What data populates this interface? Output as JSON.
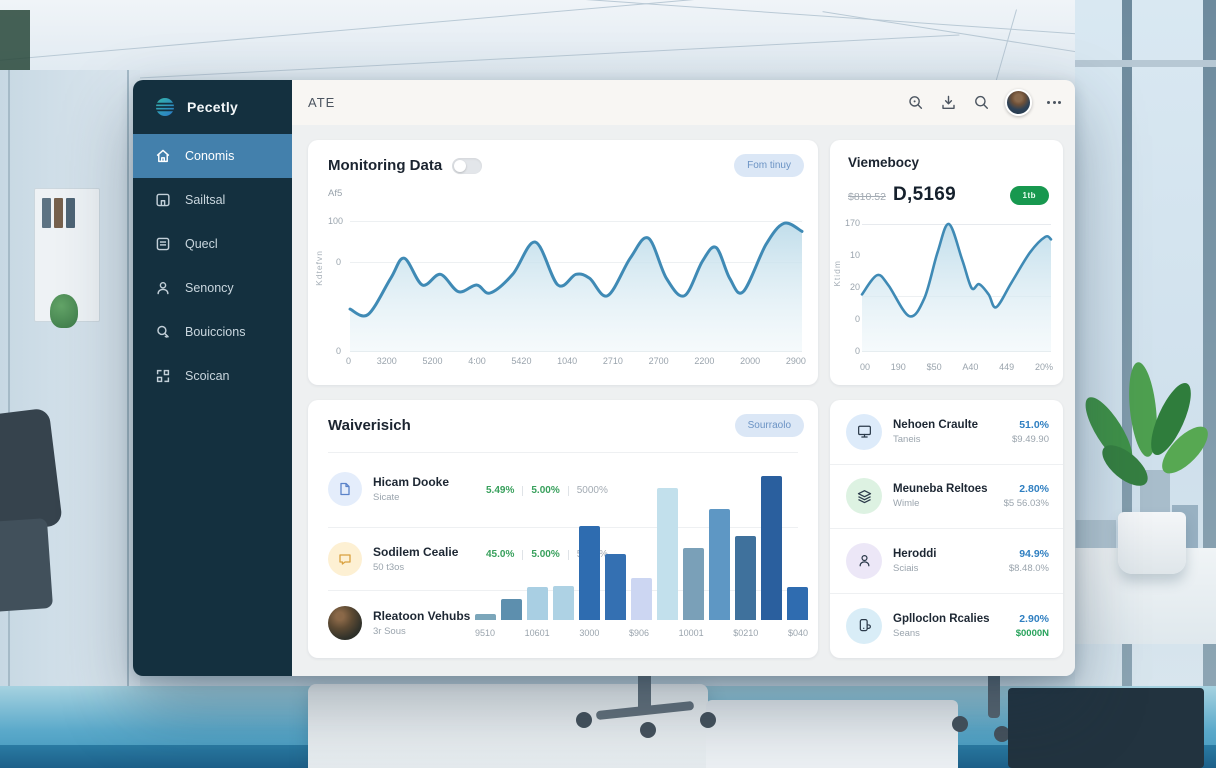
{
  "topbar": {
    "title": "ATE",
    "icons": [
      "zoom-icon",
      "download-icon",
      "search-icon",
      "avatar",
      "more-icon"
    ]
  },
  "sidebar": {
    "logo_label": "Pecetly",
    "items": [
      {
        "label": "Conomis",
        "icon": "home",
        "active": true
      },
      {
        "label": "Sailtsal",
        "icon": "building",
        "active": false
      },
      {
        "label": "Quecl",
        "icon": "document",
        "active": false
      },
      {
        "label": "Senoncy",
        "icon": "user",
        "active": false
      },
      {
        "label": "Bouiccions",
        "icon": "search",
        "active": false
      },
      {
        "label": "Scoican",
        "icon": "grid",
        "active": false
      }
    ]
  },
  "monitoring": {
    "title": "Monitoring Data",
    "toggle_on": false,
    "subtitle": "Af5",
    "action_label": "Fom tinuy"
  },
  "viemebocy": {
    "title": "Viemebocy",
    "amount_prefix": "$810.52",
    "amount": "D,5169",
    "badge": "1tb"
  },
  "waiverisich": {
    "title": "Waiverisich",
    "action_label": "Sourraolo",
    "rows": [
      {
        "title": "Hicam Dooke",
        "subtitle": "Sicate",
        "v1": "5.49%",
        "v2": "5.00%",
        "v3": "5000%"
      },
      {
        "title": "Sodilem Cealie",
        "subtitle": "50 t3os",
        "v1": "45.0%",
        "v2": "5.00%",
        "v3": "5000%"
      },
      {
        "title": "Rleatoon Vehubs",
        "subtitle": "3r Sous"
      }
    ]
  },
  "stats": {
    "rows": [
      {
        "title": "Nehoen Craulte",
        "subtitle": "Taneis",
        "value": "51.0%",
        "sub_value": "$9.49.90",
        "sub_green": false
      },
      {
        "title": "Meuneba Reltoes",
        "subtitle": "Wimle",
        "value": "2.80%",
        "sub_value": "$5 56.03%",
        "sub_green": false
      },
      {
        "title": "Heroddi",
        "subtitle": "Sciais",
        "value": "94.9%",
        "sub_value": "$8.48.0%",
        "sub_green": false
      },
      {
        "title": "Gplloclon Rcalies",
        "subtitle": "Seans",
        "value": "2.90%",
        "sub_value": "$0000N",
        "sub_green": true
      }
    ]
  },
  "colors": {
    "sidebar_bg": "#14303f",
    "sidebar_active": "#4380ac",
    "line_blue": "#3f8ab5",
    "area_fill_top": "#bedcea",
    "value_blue": "#2f7fc1",
    "value_green": "#38a05c",
    "badge_green": "#17984f"
  },
  "chart_data": [
    {
      "type": "area",
      "title": "Monitoring Data",
      "series_label": "Af5",
      "y_axis_label": "Kdtefvn",
      "y_ticks": [
        "100",
        "0",
        "0"
      ],
      "x_ticks": [
        "0",
        "3200",
        "5200",
        "4:00",
        "5420",
        "1040",
        "2710",
        "2700",
        "2200",
        "2000",
        "2900"
      ],
      "ylim": [
        0,
        100
      ],
      "grid": true,
      "points": [
        [
          0,
          68
        ],
        [
          4,
          72
        ],
        [
          9,
          45
        ],
        [
          12,
          30
        ],
        [
          16,
          50
        ],
        [
          20,
          42
        ],
        [
          24,
          55
        ],
        [
          28,
          50
        ],
        [
          31,
          56
        ],
        [
          36,
          42
        ],
        [
          41,
          18
        ],
        [
          46,
          50
        ],
        [
          50,
          42
        ],
        [
          53,
          45
        ],
        [
          57,
          58
        ],
        [
          62,
          30
        ],
        [
          66,
          15
        ],
        [
          70,
          45
        ],
        [
          74,
          58
        ],
        [
          78,
          32
        ],
        [
          81,
          22
        ],
        [
          84,
          45
        ],
        [
          87,
          55
        ],
        [
          92,
          20
        ],
        [
          96,
          4
        ],
        [
          100,
          10
        ]
      ]
    },
    {
      "type": "area",
      "title": "Viemebocy",
      "y_axis_label": "Ktidm",
      "y_ticks": [
        "170",
        "10",
        "20",
        "0",
        "0"
      ],
      "x_ticks": [
        "00",
        "190",
        "$50",
        "A40",
        "449",
        "20%"
      ],
      "ylim": [
        0,
        170
      ],
      "grid": true,
      "points": [
        [
          0,
          55
        ],
        [
          8,
          40
        ],
        [
          14,
          48
        ],
        [
          25,
          72
        ],
        [
          33,
          58
        ],
        [
          40,
          22
        ],
        [
          46,
          0
        ],
        [
          53,
          28
        ],
        [
          58,
          50
        ],
        [
          62,
          47
        ],
        [
          67,
          55
        ],
        [
          71,
          65
        ],
        [
          79,
          46
        ],
        [
          89,
          22
        ],
        [
          97,
          10
        ],
        [
          100,
          12
        ]
      ]
    },
    {
      "type": "bar",
      "title": "Waiverisich",
      "x_ticks": [
        "9510",
        "10601",
        "3000",
        "$906",
        "10001",
        "$0210",
        "$040"
      ],
      "values": [
        4,
        14,
        22,
        23,
        63,
        44,
        28,
        88,
        48,
        74,
        56,
        96,
        22
      ],
      "bar_colors": [
        "#7ba6ba",
        "#5d8fae",
        "#a9cfe3",
        "#aed2e4",
        "#2e6cb0",
        "#3470b2",
        "#ccd6f2",
        "#c2e0ec",
        "#7aa0b8",
        "#5e97c4",
        "#3f719c",
        "#2a5f9e",
        "#2f6cb0"
      ]
    }
  ]
}
